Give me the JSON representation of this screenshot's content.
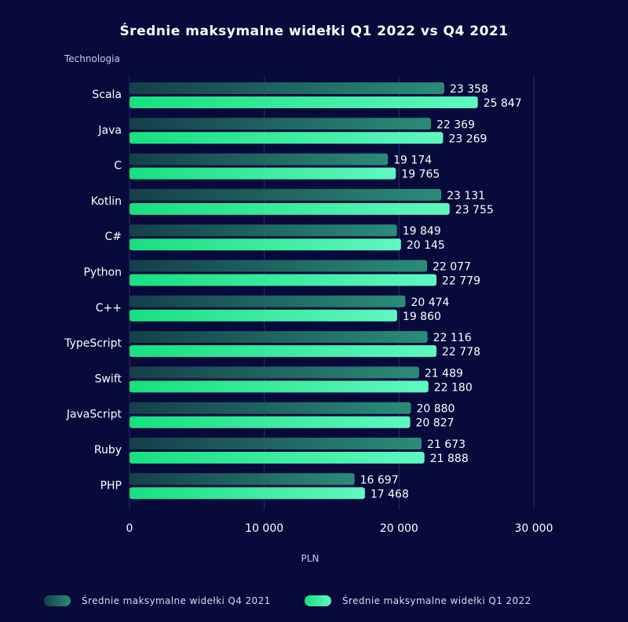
{
  "chart_data": {
    "type": "bar",
    "orientation": "horizontal",
    "title": "Średnie maksymalne widełki Q1 2022 vs Q4 2021",
    "ylabel": "Technologia",
    "xlabel": "PLN",
    "xlim": [
      0,
      30000
    ],
    "xticks": [
      0,
      10000,
      20000,
      30000
    ],
    "xtick_labels": [
      "0",
      "10 000",
      "20 000",
      "30 000"
    ],
    "grid": true,
    "legend_position": "bottom",
    "categories": [
      "Scala",
      "Java",
      "C",
      "Kotlin",
      "C#",
      "Python",
      "C++",
      "TypeScript",
      "Swift",
      "JavaScript",
      "Ruby",
      "PHP"
    ],
    "series": [
      {
        "name": "Średnie maksymalne widełki Q4 2021",
        "color": "#1f7a66",
        "values": [
          23358,
          22369,
          19174,
          23131,
          19849,
          22077,
          20474,
          22116,
          21489,
          20880,
          21673,
          16697
        ],
        "labels": [
          "23 358",
          "22 369",
          "19 174",
          "23 131",
          "19 849",
          "22 077",
          "20 474",
          "22 116",
          "21 489",
          "20 880",
          "21 673",
          "16 697"
        ]
      },
      {
        "name": "Średnie maksymalne widełki Q1 2022",
        "color": "#2ef28f",
        "values": [
          25847,
          23269,
          19765,
          23755,
          20145,
          22779,
          19860,
          22778,
          22180,
          20827,
          21888,
          17468
        ],
        "labels": [
          "25 847",
          "23 269",
          "19 765",
          "23 755",
          "20 145",
          "22 779",
          "19 860",
          "22 778",
          "22 180",
          "20 827",
          "21 888",
          "17 468"
        ]
      }
    ]
  }
}
